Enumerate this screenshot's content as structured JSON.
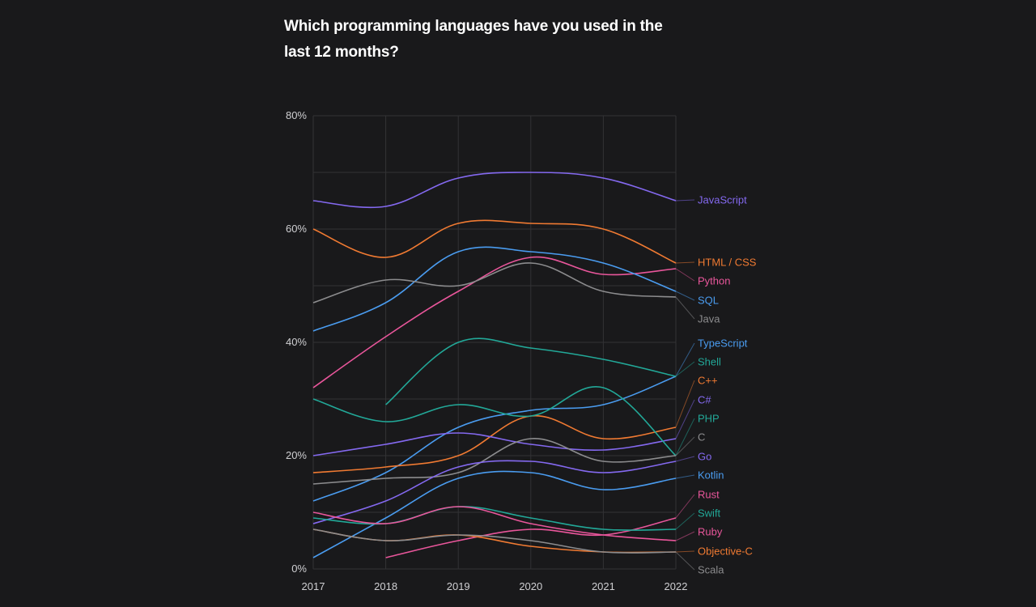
{
  "page": {
    "title": "Which programming languages have you used in the last 12 months?"
  },
  "chart_data": {
    "type": "line",
    "title": "Which programming languages have you used in the last 12 months?",
    "xlabel": "",
    "ylabel": "",
    "x": [
      2017,
      2018,
      2019,
      2020,
      2021,
      2022
    ],
    "x_tick_labels": [
      "2017",
      "2018",
      "2019",
      "2020",
      "2021",
      "2022"
    ],
    "ylim": [
      0,
      80
    ],
    "y_ticks": [
      0,
      20,
      40,
      60,
      80
    ],
    "y_tick_labels": [
      "0%",
      "20%",
      "40%",
      "60%",
      "80%"
    ],
    "y_gridlines": [
      0,
      10,
      20,
      30,
      40,
      50,
      60,
      70,
      80
    ],
    "grid": true,
    "legend_placement": "right (direct labels at line ends)",
    "series": [
      {
        "name": "JavaScript",
        "color": "#8469f0",
        "values": [
          65,
          64,
          69,
          70,
          69,
          65
        ]
      },
      {
        "name": "HTML / CSS",
        "color": "#f07a32",
        "values": [
          60,
          55,
          61,
          61,
          60,
          54
        ]
      },
      {
        "name": "Python",
        "color": "#e9569b",
        "values": [
          32,
          41,
          49,
          55,
          52,
          53
        ]
      },
      {
        "name": "SQL",
        "color": "#4a9cf0",
        "values": [
          42,
          47,
          56,
          56,
          54,
          49
        ]
      },
      {
        "name": "Java",
        "color": "#8c8c8e",
        "values": [
          47,
          51,
          50,
          54,
          49,
          48
        ]
      },
      {
        "name": "TypeScript",
        "color": "#4a9cf0",
        "values": [
          12,
          17,
          25,
          28,
          29,
          34
        ]
      },
      {
        "name": "Shell",
        "color": "#22a898",
        "values": [
          null,
          29,
          40,
          39,
          37,
          34
        ]
      },
      {
        "name": "C++",
        "color": "#f07a32",
        "values": [
          17,
          18,
          20,
          27,
          23,
          25
        ]
      },
      {
        "name": "C#",
        "color": "#8469f0",
        "values": [
          20,
          22,
          24,
          22,
          21,
          23
        ]
      },
      {
        "name": "PHP",
        "color": "#22a898",
        "values": [
          30,
          26,
          29,
          27,
          32,
          20
        ]
      },
      {
        "name": "C",
        "color": "#8c8c8e",
        "values": [
          15,
          16,
          17,
          23,
          19,
          20
        ]
      },
      {
        "name": "Go",
        "color": "#8469f0",
        "values": [
          8,
          12,
          18,
          19,
          17,
          19
        ]
      },
      {
        "name": "Kotlin",
        "color": "#4a9cf0",
        "values": [
          2,
          9,
          16,
          17,
          14,
          16
        ]
      },
      {
        "name": "Rust",
        "color": "#e9569b",
        "values": [
          null,
          2,
          5,
          7,
          6,
          9
        ]
      },
      {
        "name": "Swift",
        "color": "#22a898",
        "values": [
          9,
          8,
          11,
          9,
          7,
          7
        ]
      },
      {
        "name": "Ruby",
        "color": "#e9569b",
        "values": [
          10,
          8,
          11,
          8,
          6,
          5
        ]
      },
      {
        "name": "Objective-C",
        "color": "#f07a32",
        "values": [
          7,
          5,
          6,
          4,
          3,
          3
        ]
      },
      {
        "name": "Scala",
        "color": "#8c8c8e",
        "values": [
          7,
          5,
          6,
          5,
          3,
          3
        ]
      }
    ]
  }
}
